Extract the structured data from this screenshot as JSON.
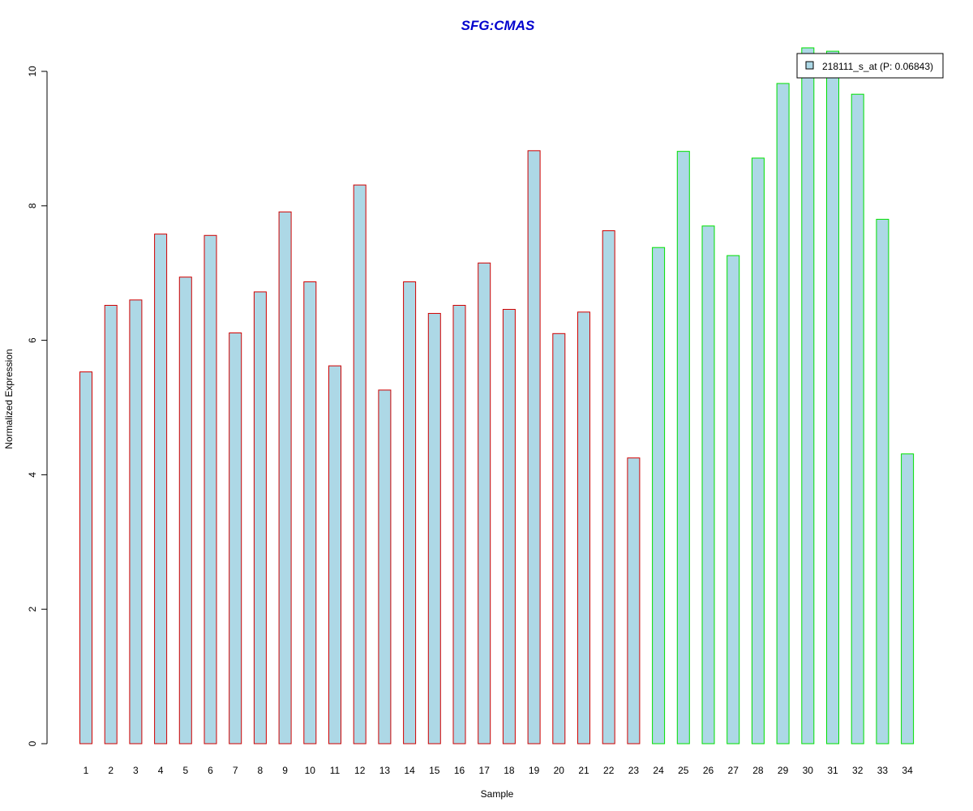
{
  "chart_data": {
    "type": "bar",
    "title": "SFG:CMAS",
    "xlabel": "Sample",
    "ylabel": "Normalized Expression",
    "ylim": [
      0,
      10
    ],
    "yticks": [
      "0",
      "2",
      "4",
      "6",
      "8",
      "10"
    ],
    "categories": [
      "1",
      "2",
      "3",
      "4",
      "5",
      "6",
      "7",
      "8",
      "9",
      "10",
      "11",
      "12",
      "13",
      "14",
      "15",
      "16",
      "17",
      "18",
      "19",
      "20",
      "21",
      "22",
      "23",
      "24",
      "25",
      "26",
      "27",
      "28",
      "29",
      "30",
      "31",
      "32",
      "33",
      "34"
    ],
    "series": [
      {
        "name": "218111_s_at (P: 0.06843)",
        "values": [
          5.53,
          6.52,
          6.6,
          7.58,
          6.94,
          7.56,
          6.11,
          6.72,
          7.91,
          6.87,
          5.62,
          8.31,
          5.26,
          6.87,
          6.4,
          6.52,
          7.15,
          6.46,
          8.82,
          6.1,
          6.42,
          7.63,
          4.25,
          7.38,
          8.81,
          7.7,
          7.26,
          8.71,
          9.82,
          10.35,
          10.3,
          9.66,
          7.8,
          4.31
        ]
      }
    ],
    "group_border_colors": [
      "#d00000",
      "#d00000",
      "#d00000",
      "#d00000",
      "#d00000",
      "#d00000",
      "#d00000",
      "#d00000",
      "#d00000",
      "#d00000",
      "#d00000",
      "#d00000",
      "#d00000",
      "#d00000",
      "#d00000",
      "#d00000",
      "#d00000",
      "#d00000",
      "#d00000",
      "#d00000",
      "#d00000",
      "#d00000",
      "#d00000",
      "#00e000",
      "#00e000",
      "#00e000",
      "#00e000",
      "#00e000",
      "#00e000",
      "#00e000",
      "#00e000",
      "#00e000",
      "#00e000",
      "#00e000"
    ],
    "bar_fill_color": "#add8e6",
    "title_color": "#0000cd",
    "grid": false,
    "legend_position": "top-right"
  }
}
